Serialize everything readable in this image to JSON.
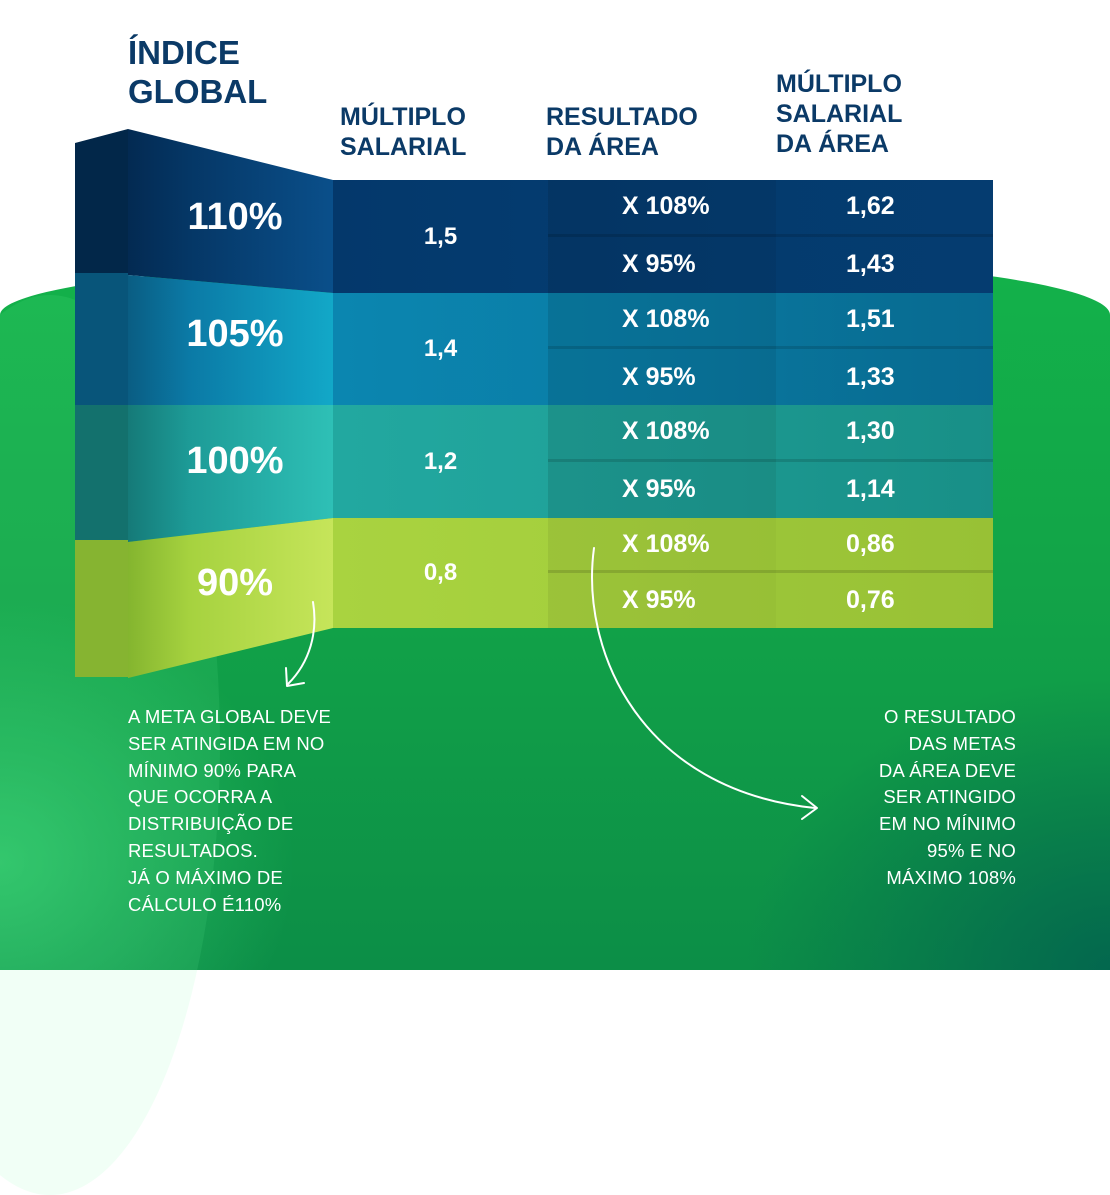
{
  "title_lines": [
    "ÍNDICE",
    "GLOBAL"
  ],
  "headers": {
    "multiplo_salarial": [
      "MÚLTIPLO",
      "SALARIAL"
    ],
    "resultado_area": [
      "RESULTADO",
      "DA ÁREA"
    ],
    "multiplo_salarial_area": [
      "MÚLTIPLO",
      "SALARIAL",
      "DA ÁREA"
    ]
  },
  "rows": [
    {
      "indice": "110%",
      "multiplo": "1,5",
      "resultados": [
        "X 108%",
        "X 95%"
      ],
      "multiplos_area": [
        "1,62",
        "1,43"
      ],
      "color": "#003d72"
    },
    {
      "indice": "105%",
      "multiplo": "1,4",
      "resultados": [
        "X 108%",
        "X 95%"
      ],
      "multiplos_area": [
        "1,51",
        "1,33"
      ],
      "color": "#0a7aa3"
    },
    {
      "indice": "100%",
      "multiplo": "1,2",
      "resultados": [
        "X 108%",
        "X 95%"
      ],
      "multiplos_area": [
        "1,30",
        "1,14"
      ],
      "color": "#1e9f96"
    },
    {
      "indice": "90%",
      "multiplo": "0,8",
      "resultados": [
        "X 108%",
        "X 95%"
      ],
      "multiplos_area": [
        "0,86",
        "0,76"
      ],
      "color": "#9fcd3c"
    }
  ],
  "notes": {
    "left": [
      "A META GLOBAL DEVE",
      "SER ATINGIDA EM NO",
      "MÍNIMO 90% PARA",
      "QUE OCORRA A",
      "DISTRIBUIÇÃO DE",
      "RESULTADOS.",
      "JÁ O MÁXIMO DE",
      "CÁLCULO É110%"
    ],
    "right": [
      "O RESULTADO",
      "DAS METAS",
      "DA ÁREA DEVE",
      "SER ATINGIDO",
      "EM NO MÍNIMO",
      "95% E NO",
      "MÁXIMO 108%"
    ]
  }
}
